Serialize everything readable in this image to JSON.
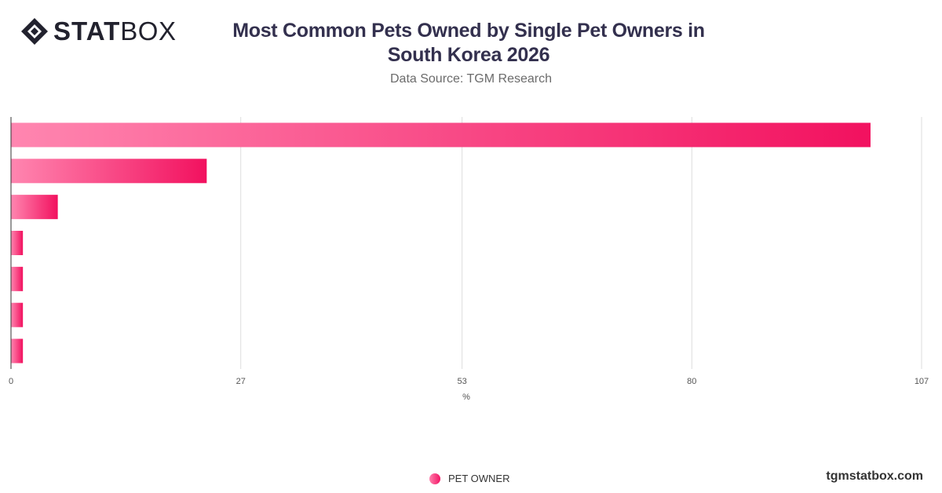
{
  "header": {
    "logo_bold": "STAT",
    "logo_light": "BOX",
    "title_line1": "Most Common Pets Owned by Single Pet Owners in",
    "title_line2": "South Korea 2026",
    "subtitle": "Data Source: TGM Research"
  },
  "footer": {
    "website": "tgmstatbox.com"
  },
  "colors": {
    "bar_start": "#ff86b0",
    "bar_end": "#f2115f",
    "grid": "#dddddd",
    "axis": "#333333"
  },
  "chart_data": {
    "type": "bar",
    "orientation": "horizontal",
    "title": "Most Common Pets Owned by Single Pet Owners in South Korea 2026",
    "subtitle": "Data Source: TGM Research",
    "categories": [
      "",
      "",
      "",
      "",
      "",
      "",
      ""
    ],
    "series": [
      {
        "name": "PET OWNER",
        "values": [
          101,
          23,
          5.5,
          1.4,
          1.4,
          1.4,
          1.4
        ]
      }
    ],
    "xlabel": "%",
    "xlim": [
      0,
      107
    ],
    "x_ticks": [
      "0",
      "27",
      "53",
      "80",
      "107"
    ],
    "grid": true,
    "legend": "bottom-center"
  }
}
